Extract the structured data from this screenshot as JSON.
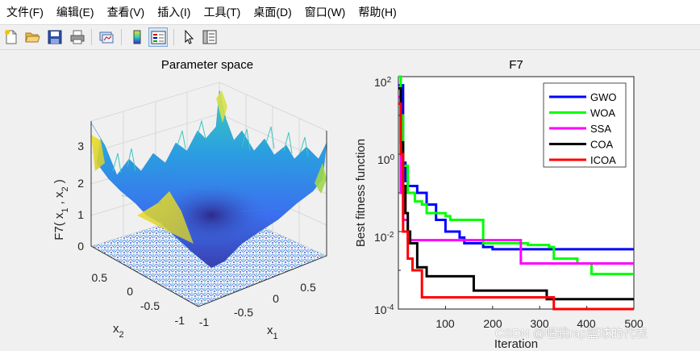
{
  "menu": {
    "items": [
      {
        "label": "文件(F)"
      },
      {
        "label": "编辑(E)"
      },
      {
        "label": "查看(V)"
      },
      {
        "label": "插入(I)"
      },
      {
        "label": "工具(T)"
      },
      {
        "label": "桌面(D)"
      },
      {
        "label": "窗口(W)"
      },
      {
        "label": "帮助(H)"
      }
    ]
  },
  "toolbar": {
    "buttons": [
      "new-figure-icon",
      "open-folder-icon",
      "save-icon",
      "print-icon",
      "link-plot-icon",
      "colorbar-icon",
      "legend-icon",
      "select-arrow-icon",
      "property-inspector-icon"
    ],
    "accent": "#7aa7d6"
  },
  "surface_plot": {
    "title": "Parameter space",
    "zlabel": "F7( x",
    "zlabel_sub1": "1",
    "zlabel_mid": " , x",
    "zlabel_sub2": "2",
    "zlabel_end": " )",
    "zticks": [
      "0",
      "1",
      "2",
      "3"
    ],
    "x2label": "x",
    "x2label_sub": "2",
    "x2ticks": [
      "0.5",
      "0",
      "-0.5",
      "-1"
    ],
    "x1label": "x",
    "x1label_sub": "1",
    "x1ticks": [
      "-1",
      "-0.5",
      "0",
      "0.5"
    ]
  },
  "chart_data": {
    "type": "line",
    "title": "F7",
    "xlabel": "Iteration",
    "ylabel": "Best fitness function",
    "yscale": "log",
    "xlim": [
      0,
      500
    ],
    "ylim": [
      0.0001,
      100
    ],
    "xticks": [
      "100",
      "200",
      "300",
      "400",
      "500"
    ],
    "ytick_base": "10",
    "ytick_exponents": [
      "2",
      "0",
      "-2",
      "-4"
    ],
    "legend_position": "top-right",
    "series": [
      {
        "name": "GWO",
        "color": "#0000ff",
        "points": [
          [
            0,
            60
          ],
          [
            10,
            0.6
          ],
          [
            15,
            0.2
          ],
          [
            20,
            0.15
          ],
          [
            40,
            0.1
          ],
          [
            60,
            0.05
          ],
          [
            80,
            0.02
          ],
          [
            100,
            0.01
          ],
          [
            130,
            0.007
          ],
          [
            140,
            0.005
          ],
          [
            180,
            0.004
          ],
          [
            200,
            0.0035
          ],
          [
            500,
            0.0035
          ]
        ]
      },
      {
        "name": "WOA",
        "color": "#00ff00",
        "points": [
          [
            0,
            150
          ],
          [
            5,
            10
          ],
          [
            10,
            0.5
          ],
          [
            20,
            0.1
          ],
          [
            35,
            0.06
          ],
          [
            50,
            0.05
          ],
          [
            60,
            0.03
          ],
          [
            100,
            0.025
          ],
          [
            110,
            0.02
          ],
          [
            160,
            0.02
          ],
          [
            180,
            0.005
          ],
          [
            275,
            0.0045
          ],
          [
            320,
            0.004
          ],
          [
            330,
            0.002
          ],
          [
            380,
            0.0015
          ],
          [
            410,
            0.0008
          ],
          [
            500,
            0.0008
          ]
        ]
      },
      {
        "name": "SSA",
        "color": "#ff00ff",
        "points": [
          [
            0,
            30
          ],
          [
            5,
            0.1
          ],
          [
            10,
            0.02
          ],
          [
            15,
            0.02
          ],
          [
            20,
            0.006
          ],
          [
            250,
            0.006
          ],
          [
            260,
            0.0015
          ],
          [
            500,
            0.0015
          ]
        ]
      },
      {
        "name": "COA",
        "color": "#000000",
        "points": [
          [
            0,
            50
          ],
          [
            5,
            2
          ],
          [
            10,
            0.15
          ],
          [
            15,
            0.03
          ],
          [
            20,
            0.01
          ],
          [
            25,
            0.005
          ],
          [
            40,
            0.0012
          ],
          [
            60,
            0.0007
          ],
          [
            150,
            0.0007
          ],
          [
            160,
            0.0003
          ],
          [
            300,
            0.0003
          ],
          [
            315,
            0.00018
          ],
          [
            500,
            0.00018
          ]
        ]
      },
      {
        "name": "ICOA",
        "color": "#ff0000",
        "points": [
          [
            0,
            20
          ],
          [
            5,
            1
          ],
          [
            10,
            0.01
          ],
          [
            20,
            0.002
          ],
          [
            30,
            0.001
          ],
          [
            50,
            0.0002
          ],
          [
            320,
            0.0002
          ],
          [
            330,
            9e-05
          ],
          [
            500,
            9e-05
          ]
        ]
      }
    ]
  },
  "watermark": "CSDN @唱跳rap篮球的代表"
}
